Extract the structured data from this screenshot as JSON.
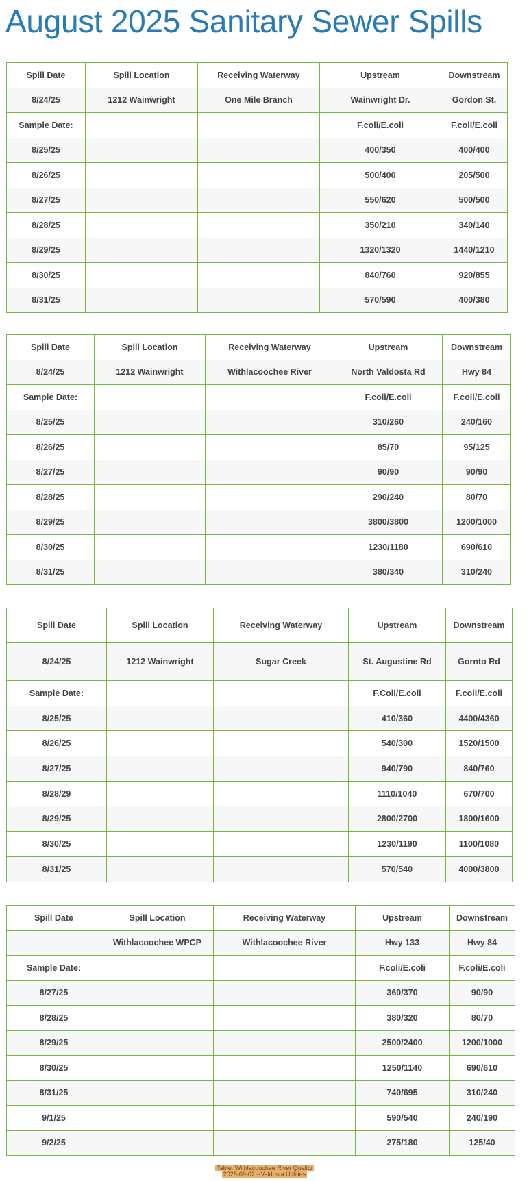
{
  "title": "August 2025 Sanitary Sewer Spills",
  "header_labels": [
    "Spill Date",
    "Spill Location",
    "Receiving Waterway",
    "Upstream",
    "Downstream"
  ],
  "accent_color": "#7cb342",
  "title_color": "#2a7ab4",
  "tables": [
    {
      "spill": [
        "8/24/25",
        "1212 Wainwright",
        "One Mile Branch",
        "Wainwright Dr.",
        "Gordon St."
      ],
      "sample_row": [
        "Sample Date:",
        "",
        "",
        "F.coli/E.coli",
        "F.coli/E.coli"
      ],
      "rows": [
        [
          "8/25/25",
          "",
          "",
          "400/350",
          "400/400"
        ],
        [
          "8/26/25",
          "",
          "",
          "500/400",
          "205/500"
        ],
        [
          "8/27/25",
          "",
          "",
          "550/620",
          "500/500"
        ],
        [
          "8/28/25",
          "",
          "",
          "350/210",
          "340/140"
        ],
        [
          "8/29/25",
          "",
          "",
          "1320/1320",
          "1440/1210"
        ],
        [
          "8/30/25",
          "",
          "",
          "840/760",
          "920/855"
        ],
        [
          "8/31/25",
          "",
          "",
          "570/590",
          "400/380"
        ]
      ]
    },
    {
      "spill": [
        "8/24/25",
        "1212 Wainwright",
        "Withlacoochee River",
        "North Valdosta Rd",
        "Hwy 84"
      ],
      "sample_row": [
        "Sample Date:",
        "",
        "",
        "F.coli/E.coli",
        "F.coli/E.coli"
      ],
      "rows": [
        [
          "8/25/25",
          "",
          "",
          "310/260",
          "240/160"
        ],
        [
          "8/26/25",
          "",
          "",
          "85/70",
          "95/125"
        ],
        [
          "8/27/25",
          "",
          "",
          "90/90",
          "90/90"
        ],
        [
          "8/28/25",
          "",
          "",
          "290/240",
          "80/70"
        ],
        [
          "8/29/25",
          "",
          "",
          "3800/3800",
          "1200/1000"
        ],
        [
          "8/30/25",
          "",
          "",
          "1230/1180",
          "690/610"
        ],
        [
          "8/31/25",
          "",
          "",
          "380/340",
          "310/240"
        ]
      ]
    },
    {
      "spill": [
        "8/24/25",
        "1212 Wainwright",
        "Sugar Creek",
        "St. Augustine Rd",
        "Gornto Rd"
      ],
      "sample_row": [
        "Sample Date:",
        "",
        "",
        "F.Coli/E.coli",
        "F.coli/E.coli"
      ],
      "rows": [
        [
          "8/25/25",
          "",
          "",
          "410/360",
          "4400/4360"
        ],
        [
          "8/26/25",
          "",
          "",
          "540/300",
          "1520/1500"
        ],
        [
          "8/27/25",
          "",
          "",
          "940/790",
          "840/760"
        ],
        [
          "8/28/29",
          "",
          "",
          "1110/1040",
          "670/700"
        ],
        [
          "8/29/25",
          "",
          "",
          "2800/2700",
          "1800/1600"
        ],
        [
          "8/30/25",
          "",
          "",
          "1230/1190",
          "1100/1080"
        ],
        [
          "8/31/25",
          "",
          "",
          "570/540",
          "4000/3800"
        ]
      ]
    },
    {
      "spill": [
        "",
        "Withlacoochee WPCP",
        "Withlacoochee River",
        "Hwy 133",
        "Hwy 84"
      ],
      "sample_row": [
        "Sample Date:",
        "",
        "",
        "F.coli/E.coli",
        "F.coli/E.coli"
      ],
      "rows": [
        [
          "8/27/25",
          "",
          "",
          "360/370",
          "90/90"
        ],
        [
          "8/28/25",
          "",
          "",
          "380/320",
          "80/70"
        ],
        [
          "8/29/25",
          "",
          "",
          "2500/2400",
          "1200/1000"
        ],
        [
          "8/30/25",
          "",
          "",
          "1250/1140",
          "690/610"
        ],
        [
          "8/31/25",
          "",
          "",
          "740/695",
          "310/240"
        ],
        [
          "9/1/25",
          "",
          "",
          "590/540",
          "240/190"
        ],
        [
          "9/2/25",
          "",
          "",
          "275/180",
          "125/40"
        ]
      ]
    }
  ],
  "caption": {
    "line1": "Table: Withlacoochee River Quality",
    "line2": "2025-09-02 --Valdosta Utilities"
  }
}
